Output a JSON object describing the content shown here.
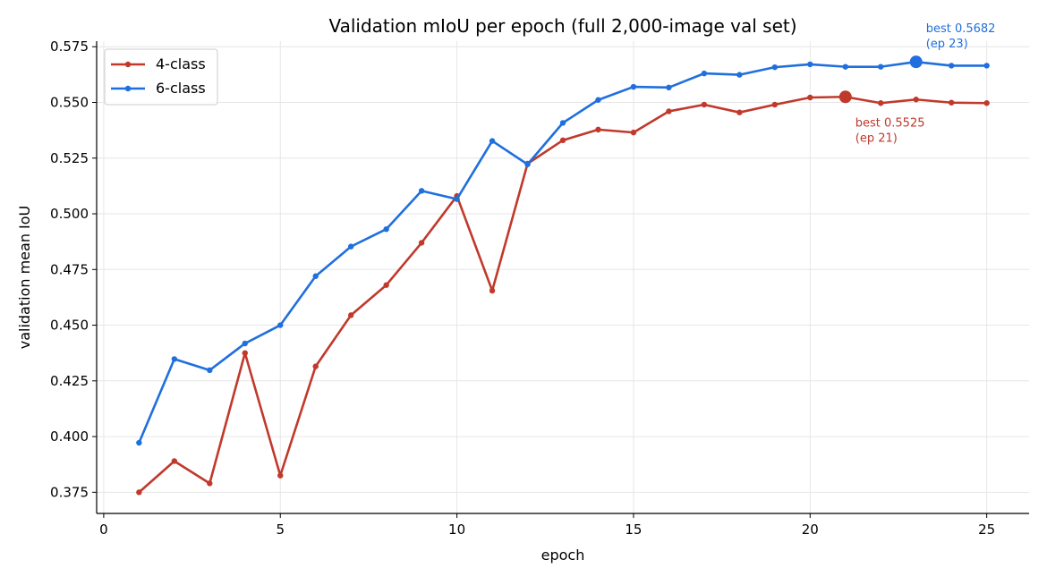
{
  "chart_data": {
    "type": "line",
    "title": "Validation mIoU per epoch (full 2,000-image val set)",
    "xlabel": "epoch",
    "ylabel": "validation mean IoU",
    "xlim": [
      -0.2,
      26.2
    ],
    "ylim": [
      0.3655,
      0.5775
    ],
    "xticks": [
      0,
      5,
      10,
      15,
      20,
      25
    ],
    "xtick_labels": [
      "0",
      "5",
      "10",
      "15",
      "20",
      "25"
    ],
    "yticks": [
      0.375,
      0.4,
      0.425,
      0.45,
      0.475,
      0.5,
      0.525,
      0.55,
      0.575
    ],
    "ytick_labels": [
      "0.375",
      "0.400",
      "0.425",
      "0.450",
      "0.475",
      "0.500",
      "0.525",
      "0.550",
      "0.575"
    ],
    "grid": true,
    "legend_position": "top-left",
    "x": [
      1,
      2,
      3,
      4,
      5,
      6,
      7,
      8,
      9,
      10,
      11,
      12,
      13,
      14,
      15,
      16,
      17,
      18,
      19,
      20,
      21,
      22,
      23,
      24,
      25
    ],
    "series": [
      {
        "name": "4-class",
        "color": "#c0392b",
        "values": [
          0.375,
          0.389,
          0.379,
          0.4375,
          0.3825,
          0.4315,
          0.4545,
          0.468,
          0.487,
          0.508,
          0.4655,
          0.5225,
          0.533,
          0.5378,
          0.5365,
          0.546,
          0.549,
          0.5455,
          0.549,
          0.5522,
          0.5525,
          0.5497,
          0.5513,
          0.5499,
          0.5497
        ],
        "best": {
          "x": 21,
          "y": 0.5525,
          "label_line1": "best 0.5525",
          "label_line2": "(ep 21)"
        }
      },
      {
        "name": "6-class",
        "color": "#1f6fde",
        "values": [
          0.3972,
          0.4348,
          0.4298,
          0.4418,
          0.45,
          0.472,
          0.4853,
          0.4931,
          0.5103,
          0.5066,
          0.5327,
          0.5222,
          0.5408,
          0.5511,
          0.557,
          0.5567,
          0.563,
          0.5624,
          0.5658,
          0.5671,
          0.566,
          0.566,
          0.5682,
          0.5665,
          0.5665
        ],
        "best": {
          "x": 23,
          "y": 0.5682,
          "label_line1": "best 0.5682",
          "label_line2": "(ep 23)"
        }
      }
    ]
  }
}
